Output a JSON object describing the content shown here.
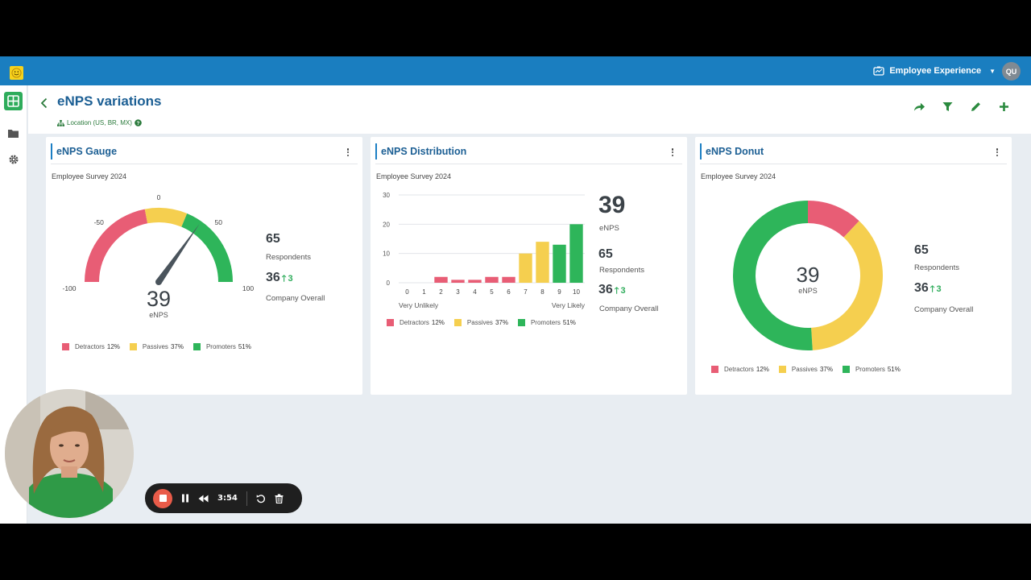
{
  "app": {
    "product_name": "Employee Experience",
    "user_initials": "QU"
  },
  "sidebar": {
    "items": [
      {
        "icon": "dashboard-icon",
        "active": true
      },
      {
        "icon": "folder-icon",
        "active": false
      },
      {
        "icon": "gear-icon",
        "active": false
      }
    ]
  },
  "header": {
    "title": "eNPS variations",
    "filter": "Location (US, BR, MX)",
    "actions": [
      "share-icon",
      "filter-icon",
      "edit-icon",
      "add-icon"
    ]
  },
  "legend": {
    "detractors": "Detractors",
    "passives": "Passives",
    "promoters": "Promoters",
    "detractors_pct": "12%",
    "passives_pct": "37%",
    "promoters_pct": "51%"
  },
  "colors": {
    "detractors": "#e85d75",
    "passives": "#f5cf4f",
    "promoters": "#2eb55a",
    "brand": "#1a7ec0"
  },
  "cards": {
    "gauge": {
      "title": "eNPS Gauge",
      "subtitle": "Employee Survey 2024",
      "score": "39",
      "score_label": "eNPS",
      "ticks": [
        "-100",
        "-50",
        "0",
        "50",
        "100"
      ],
      "respondents": "65",
      "respondents_label": "Respondents",
      "company": "36",
      "company_delta": "3",
      "company_label": "Company Overall"
    },
    "distribution": {
      "title": "eNPS Distribution",
      "subtitle": "Employee Survey 2024",
      "score": "39",
      "score_label": "eNPS",
      "respondents": "65",
      "respondents_label": "Respondents",
      "company": "36",
      "company_delta": "3",
      "company_label": "Company Overall",
      "left_anchor": "Very Unlikely",
      "right_anchor": "Very Likely"
    },
    "donut": {
      "title": "eNPS Donut",
      "subtitle": "Employee Survey 2024",
      "score": "39",
      "score_label": "eNPS",
      "respondents": "65",
      "respondents_label": "Respondents",
      "company": "36",
      "company_delta": "3",
      "company_label": "Company Overall"
    }
  },
  "chart_data": [
    {
      "type": "gauge",
      "value": 39,
      "range": [
        -100,
        100
      ],
      "segments": [
        {
          "name": "Detractors",
          "from": -100,
          "to": -12
        },
        {
          "name": "Passives",
          "from": -12,
          "to": 25
        },
        {
          "name": "Promoters",
          "from": 25,
          "to": 100
        }
      ]
    },
    {
      "type": "bar",
      "categories": [
        "0",
        "1",
        "2",
        "3",
        "4",
        "5",
        "6",
        "7",
        "8",
        "9",
        "10"
      ],
      "values": [
        0,
        0,
        2,
        1,
        1,
        2,
        2,
        10,
        14,
        13,
        20
      ],
      "ylim": [
        0,
        30
      ],
      "yticks": [
        "0",
        "10",
        "20",
        "30"
      ],
      "grid": true
    },
    {
      "type": "pie",
      "donut": true,
      "labels": [
        "Detractors",
        "Passives",
        "Promoters"
      ],
      "values": [
        12,
        37,
        51
      ]
    }
  ],
  "recorder": {
    "time": "3:54"
  }
}
